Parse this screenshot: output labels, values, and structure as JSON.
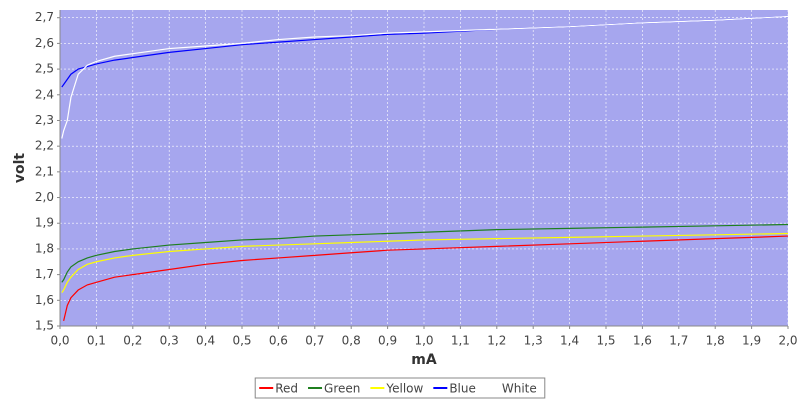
{
  "chart_data": {
    "type": "line",
    "x_label": "mA",
    "y_label": "volt",
    "x": [
      0.005,
      0.01,
      0.02,
      0.03,
      0.05,
      0.075,
      0.1,
      0.15,
      0.2,
      0.3,
      0.4,
      0.5,
      0.6,
      0.7,
      0.8,
      0.9,
      1.0,
      1.2,
      1.4,
      1.6,
      1.8,
      2.0
    ],
    "series": [
      {
        "name": "Red",
        "color": "#ff0000",
        "values": [
          null,
          1.52,
          1.58,
          1.61,
          1.64,
          1.66,
          1.67,
          1.69,
          1.7,
          1.72,
          1.74,
          1.755,
          1.765,
          1.775,
          1.785,
          1.795,
          1.8,
          1.81,
          1.82,
          1.83,
          1.84,
          1.85
        ]
      },
      {
        "name": "Green",
        "color": "#1f7f1f",
        "values": [
          1.67,
          1.68,
          1.71,
          1.73,
          1.75,
          1.765,
          1.775,
          1.79,
          1.8,
          1.815,
          1.825,
          1.835,
          1.84,
          1.85,
          1.855,
          1.86,
          1.865,
          1.875,
          1.88,
          1.885,
          1.89,
          1.895
        ]
      },
      {
        "name": "Yellow",
        "color": "#ffff00",
        "values": [
          1.63,
          1.64,
          1.67,
          1.69,
          1.72,
          1.74,
          1.75,
          1.765,
          1.775,
          1.79,
          1.8,
          1.81,
          1.815,
          1.82,
          1.825,
          1.83,
          1.835,
          1.84,
          1.845,
          1.85,
          1.855,
          1.86
        ]
      },
      {
        "name": "Blue",
        "color": "#0000ff",
        "values": [
          2.43,
          2.44,
          2.46,
          2.48,
          2.5,
          2.51,
          2.52,
          2.535,
          2.545,
          2.565,
          2.58,
          2.595,
          2.605,
          2.615,
          2.625,
          2.635,
          2.64,
          2.655,
          2.665,
          2.68,
          2.69,
          2.705
        ]
      },
      {
        "name": "White",
        "color": "#ffffff",
        "values": [
          2.23,
          2.26,
          2.3,
          2.39,
          2.48,
          2.515,
          2.53,
          2.55,
          2.56,
          2.58,
          2.59,
          2.6,
          2.615,
          2.625,
          2.63,
          2.64,
          2.645,
          2.655,
          2.665,
          2.68,
          2.69,
          2.705
        ]
      }
    ],
    "xlim": [
      0,
      2.0
    ],
    "ylim": [
      1.5,
      2.73
    ],
    "xticks": [
      {
        "value": 0,
        "label": "0,0"
      },
      {
        "value": 0.1,
        "label": "0,1"
      },
      {
        "value": 0.2,
        "label": "0,2"
      },
      {
        "value": 0.3,
        "label": "0,3"
      },
      {
        "value": 0.4,
        "label": "0,4"
      },
      {
        "value": 0.5,
        "label": "0,5"
      },
      {
        "value": 0.6,
        "label": "0,6"
      },
      {
        "value": 0.7,
        "label": "0,7"
      },
      {
        "value": 0.8,
        "label": "0,8"
      },
      {
        "value": 0.9,
        "label": "0,9"
      },
      {
        "value": 1.0,
        "label": "1,0"
      },
      {
        "value": 1.1,
        "label": "1,1"
      },
      {
        "value": 1.2,
        "label": "1,2"
      },
      {
        "value": 1.3,
        "label": "1,3"
      },
      {
        "value": 1.4,
        "label": "1,4"
      },
      {
        "value": 1.5,
        "label": "1,5"
      },
      {
        "value": 1.6,
        "label": "1,6"
      },
      {
        "value": 1.7,
        "label": "1,7"
      },
      {
        "value": 1.8,
        "label": "1,8"
      },
      {
        "value": 1.9,
        "label": "1,9"
      },
      {
        "value": 2.0,
        "label": "2,0"
      }
    ],
    "yticks": [
      {
        "value": 1.5,
        "label": "1,5"
      },
      {
        "value": 1.6,
        "label": "1,6"
      },
      {
        "value": 1.7,
        "label": "1,7"
      },
      {
        "value": 1.8,
        "label": "1,8"
      },
      {
        "value": 1.9,
        "label": "1,9"
      },
      {
        "value": 2.0,
        "label": "2,0"
      },
      {
        "value": 2.1,
        "label": "2,1"
      },
      {
        "value": 2.2,
        "label": "2,2"
      },
      {
        "value": 2.3,
        "label": "2,3"
      },
      {
        "value": 2.4,
        "label": "2,4"
      },
      {
        "value": 2.5,
        "label": "2,5"
      },
      {
        "value": 2.6,
        "label": "2,6"
      },
      {
        "value": 2.7,
        "label": "2,7"
      }
    ],
    "grid": true,
    "legend": "bottom",
    "plot_background": "#a6a6ee"
  }
}
